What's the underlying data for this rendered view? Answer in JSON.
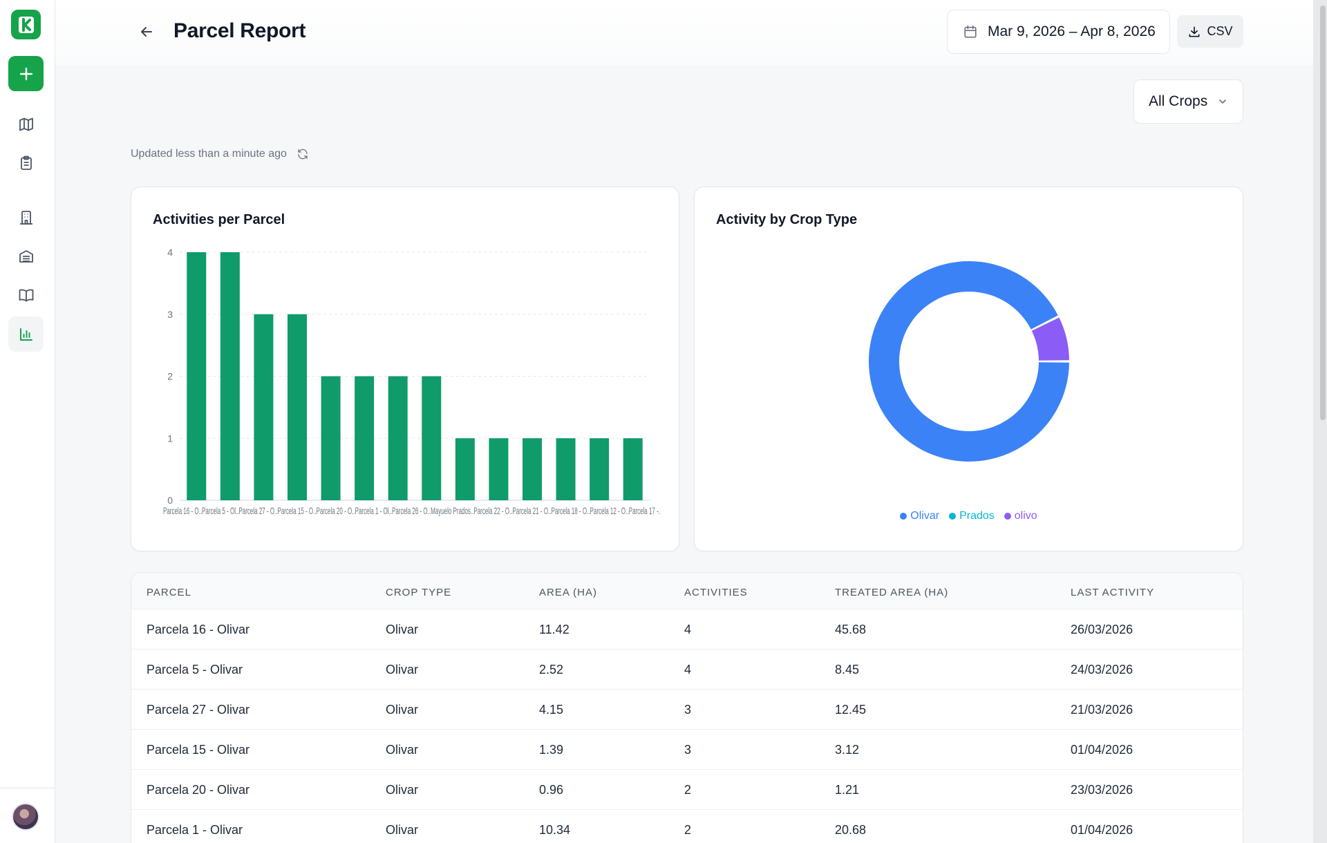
{
  "header": {
    "title": "Parcel Report",
    "date_range": "Mar 9, 2026 – Apr 8, 2026",
    "csv_label": "CSV"
  },
  "filters": {
    "crop_select": "All Crops"
  },
  "status": {
    "updated": "Updated less than a minute ago"
  },
  "colors": {
    "brand": "#16a34a",
    "bar": "#0f9b6a",
    "olivar": "#3b82f6",
    "prados": "#06b6d4",
    "olivo": "#8b5cf6"
  },
  "charts": {
    "bar_title": "Activities per Parcel",
    "pie_title": "Activity by Crop Type",
    "x_tick_text": "Parcela 16 - O..Parcela 5 - Ol..Parcela 27 - O..Parcela 15 - O..Parcela 20 - O..Parcela 1 - Ol..Parcela 26 - O..Mayuelo Prados..Parcela 22 - O..Parcela 21 - O..Parcela 18 - O..Parcela 12 - O..Parcela 17 -."
  },
  "chart_data": [
    {
      "type": "bar",
      "title": "Activities per Parcel",
      "categories": [
        "Parcela 16",
        "Parcela 5",
        "Parcela 27",
        "Parcela 15",
        "Parcela 20",
        "Parcela 1",
        "Parcela 26",
        "Mayuelo Prados",
        "Parcela 22",
        "Parcela 21",
        "Parcela 18",
        "Parcela 12",
        "Parcela 17",
        "Parcela"
      ],
      "values": [
        4,
        4,
        3,
        3,
        2,
        2,
        2,
        2,
        1,
        1,
        1,
        1,
        1,
        1
      ],
      "yticks": [
        0,
        1,
        2,
        3,
        4
      ],
      "ylim": [
        0,
        4
      ],
      "grid": true
    },
    {
      "type": "pie",
      "title": "Activity by Crop Type",
      "donut": true,
      "legend_position": "bottom",
      "slices": [
        {
          "name": "Olivar",
          "value": 25,
          "color": "#3b82f6"
        },
        {
          "name": "Prados",
          "value": 0,
          "color": "#06b6d4"
        },
        {
          "name": "olivo",
          "value": 2,
          "color": "#8b5cf6"
        }
      ]
    }
  ],
  "table": {
    "columns": [
      "PARCEL",
      "CROP TYPE",
      "AREA (HA)",
      "ACTIVITIES",
      "TREATED AREA (HA)",
      "LAST ACTIVITY"
    ],
    "rows": [
      [
        "Parcela 16 - Olivar",
        "Olivar",
        "11.42",
        "4",
        "45.68",
        "26/03/2026"
      ],
      [
        "Parcela 5 - Olivar",
        "Olivar",
        "2.52",
        "4",
        "8.45",
        "24/03/2026"
      ],
      [
        "Parcela 27 - Olivar",
        "Olivar",
        "4.15",
        "3",
        "12.45",
        "21/03/2026"
      ],
      [
        "Parcela 15 - Olivar",
        "Olivar",
        "1.39",
        "3",
        "3.12",
        "01/04/2026"
      ],
      [
        "Parcela 20 - Olivar",
        "Olivar",
        "0.96",
        "2",
        "1.21",
        "23/03/2026"
      ],
      [
        "Parcela 1 - Olivar",
        "Olivar",
        "10.34",
        "2",
        "20.68",
        "01/04/2026"
      ]
    ]
  },
  "icons": {
    "logo": "k-logo-icon",
    "add": "plus-icon",
    "nav": [
      "map-icon",
      "clipboard-icon",
      "building-icon",
      "warehouse-icon",
      "book-icon",
      "bar-chart-icon"
    ]
  }
}
